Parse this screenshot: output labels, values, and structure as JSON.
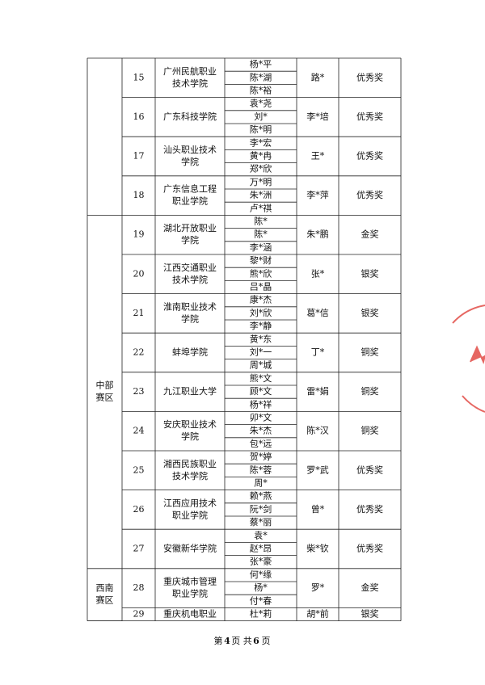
{
  "table": {
    "groups": [
      {
        "rows": [
          {
            "no": 15,
            "school": [
              "广州民航职业",
              "技术学院"
            ],
            "students": [
              "杨*平",
              "陈*湖",
              "陈*裕"
            ],
            "teacher": "路*",
            "award": "优秀奖"
          },
          {
            "no": 16,
            "school": [
              "广东科技学院"
            ],
            "students": [
              "袁*尧",
              "刘*",
              "陈*明"
            ],
            "teacher": "李*培",
            "award": "优秀奖"
          },
          {
            "no": 17,
            "school": [
              "汕头职业技术",
              "学院"
            ],
            "students": [
              "李*宏",
              "黄*冉",
              "郑*欣"
            ],
            "teacher": "王*",
            "award": "优秀奖"
          },
          {
            "no": 18,
            "school": [
              "广东信息工程",
              "职业学院"
            ],
            "students": [
              "万*明",
              "朱*洲",
              "卢*祺"
            ],
            "teacher": "李*萍",
            "award": "优秀奖"
          }
        ]
      },
      {
        "region": [
          "中部",
          "赛区"
        ],
        "rows": [
          {
            "no": 19,
            "school": [
              "湖北开放职业",
              "学院"
            ],
            "students": [
              "陈*",
              "陈*",
              "李*涵"
            ],
            "teacher": "朱*鹏",
            "award": "金奖"
          },
          {
            "no": 20,
            "school": [
              "江西交通职业",
              "技术学院"
            ],
            "students": [
              "黎*财",
              "熊*欣",
              "吕*晶"
            ],
            "teacher": "张*",
            "award": "银奖"
          },
          {
            "no": 21,
            "school": [
              "淮南职业技术",
              "学院"
            ],
            "students": [
              "康*杰",
              "刘*欣",
              "李*静"
            ],
            "teacher": "葛*信",
            "award": "银奖"
          },
          {
            "no": 22,
            "school": [
              "蚌埠学院"
            ],
            "students": [
              "黄*东",
              "刘*一",
              "周*城"
            ],
            "teacher": "丁*",
            "award": "铜奖"
          },
          {
            "no": 23,
            "school": [
              "九江职业大学"
            ],
            "students": [
              "熊*文",
              "顾*文",
              "杨*祥"
            ],
            "teacher": "雷*娟",
            "award": "铜奖"
          },
          {
            "no": 24,
            "school": [
              "安庆职业技术",
              "学院"
            ],
            "students": [
              "卯*文",
              "朱*杰",
              "包*远"
            ],
            "teacher": "陈*汉",
            "award": "铜奖"
          },
          {
            "no": 25,
            "school": [
              "湘西民族职业",
              "技术学院"
            ],
            "students": [
              "贺*婷",
              "陈*蓉",
              "周*"
            ],
            "teacher": "罗*武",
            "award": "优秀奖"
          },
          {
            "no": 26,
            "school": [
              "江西应用技术",
              "职业学院"
            ],
            "students": [
              "赖*燕",
              "阮*剑",
              "蔡*丽"
            ],
            "teacher": "曾*",
            "award": "优秀奖"
          },
          {
            "no": 27,
            "school": [
              "安徽新华学院"
            ],
            "students": [
              "袁*",
              "赵*昂",
              "张*豪"
            ],
            "teacher": "柴*钦",
            "award": "优秀奖"
          }
        ]
      },
      {
        "region": [
          "西南",
          "赛区"
        ],
        "rows": [
          {
            "no": 28,
            "school": [
              "重庆城市管理",
              "职业学院"
            ],
            "students": [
              "何*缘",
              "杨*",
              "付*春"
            ],
            "teacher": "罗*",
            "award": "金奖"
          },
          {
            "no": 29,
            "school": [
              "重庆机电职业"
            ],
            "students": [
              "杜*莉"
            ],
            "teacher": "胡*前",
            "award": "银奖"
          }
        ]
      }
    ]
  },
  "footer": {
    "prefix": "第",
    "page": "4",
    "middle": "页 共",
    "total": "6",
    "suffix": "页"
  }
}
